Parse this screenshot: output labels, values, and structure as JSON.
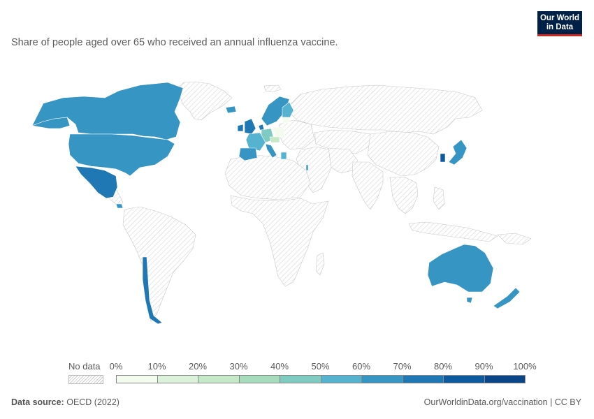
{
  "title": "Share of people aged over 65 who received an annual influenza vaccine.",
  "logo": {
    "line1": "Our World",
    "line2": "in Data"
  },
  "legend": {
    "no_data_label": "No data",
    "ticks": [
      "0%",
      "10%",
      "20%",
      "30%",
      "40%",
      "50%",
      "60%",
      "70%",
      "80%",
      "90%",
      "100%"
    ],
    "bin_colors": [
      "#f3fbef",
      "#dcf1da",
      "#c5e8c6",
      "#a6dbbb",
      "#7fcac1",
      "#55b3d0",
      "#3795c4",
      "#1f78b4",
      "#0d5a9e",
      "#0a4587"
    ],
    "no_data_color": "#dddddd"
  },
  "footer": {
    "source_label": "Data source:",
    "source_value": "OECD (2022)",
    "url_text": "OurWorldinData.org/vaccination | CC BY"
  },
  "chart_data": {
    "type": "choropleth",
    "unit": "%",
    "scale": [
      0,
      100
    ],
    "regions_with_data": [
      {
        "name": "Canada",
        "bin": "60-70%"
      },
      {
        "name": "United States",
        "bin": "60-70%"
      },
      {
        "name": "Mexico",
        "bin": "70-80%"
      },
      {
        "name": "Costa Rica",
        "bin": "60-70%"
      },
      {
        "name": "Chile",
        "bin": "70-80%"
      },
      {
        "name": "United Kingdom",
        "bin": "70-80%"
      },
      {
        "name": "Ireland",
        "bin": "70-80%"
      },
      {
        "name": "Iceland",
        "bin": "60-70%"
      },
      {
        "name": "Norway",
        "bin": "60-70%"
      },
      {
        "name": "Sweden",
        "bin": "60-70%"
      },
      {
        "name": "Finland",
        "bin": "50-60%"
      },
      {
        "name": "Denmark",
        "bin": "70-80%"
      },
      {
        "name": "Germany",
        "bin": "40-50%"
      },
      {
        "name": "Poland",
        "bin": "0-10%"
      },
      {
        "name": "Czechia",
        "bin": "20-30%"
      },
      {
        "name": "Estonia",
        "bin": "0-10%"
      },
      {
        "name": "France",
        "bin": "50-60%"
      },
      {
        "name": "Spain",
        "bin": "60-70%"
      },
      {
        "name": "Portugal",
        "bin": "60-70%"
      },
      {
        "name": "Italy",
        "bin": "60-70%"
      },
      {
        "name": "Greece",
        "bin": "50-60%"
      },
      {
        "name": "Israel",
        "bin": "60-70%"
      },
      {
        "name": "South Korea",
        "bin": "80-90%"
      },
      {
        "name": "Japan",
        "bin": "50-60%"
      },
      {
        "name": "Australia",
        "bin": "60-70%"
      },
      {
        "name": "New Zealand",
        "bin": "60-70%"
      }
    ]
  }
}
